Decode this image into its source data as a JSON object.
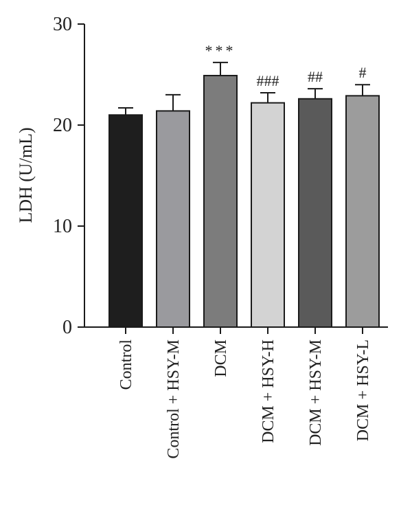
{
  "chart_data": {
    "type": "bar",
    "ylabel": "LDH (U/mL)",
    "xlabel": "",
    "ylim": [
      0,
      30
    ],
    "yticks": [
      0,
      10,
      20,
      30
    ],
    "grid": false,
    "categories": [
      "Control",
      "Control + HSY-M",
      "DCM",
      "DCM + HSY-H",
      "DCM + HSY-M",
      "DCM + HSY-L"
    ],
    "values": [
      21.0,
      21.4,
      24.9,
      22.2,
      22.6,
      22.9
    ],
    "errors": [
      0.7,
      1.6,
      1.3,
      1.0,
      1.0,
      1.1
    ],
    "significance": [
      "",
      "",
      "***",
      "###",
      "##",
      "#"
    ],
    "bar_colors": [
      "#1e1e1e",
      "#9a9a9e",
      "#7c7c7c",
      "#d3d3d3",
      "#5a5a5a",
      "#9c9c9c"
    ]
  }
}
